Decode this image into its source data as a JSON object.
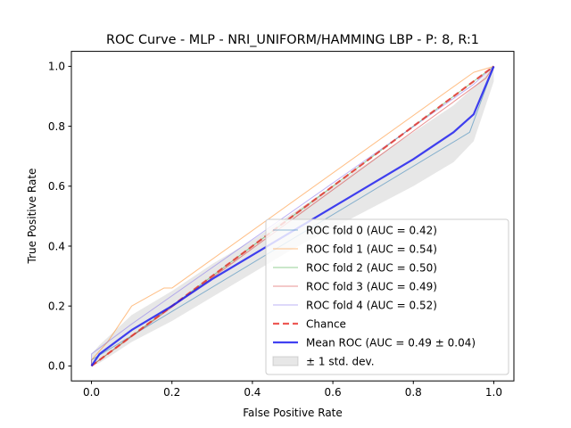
{
  "chart_data": {
    "type": "line",
    "title": "ROC Curve - MLP - NRI_UNIFORM/HAMMING LBP - P: 8, R:1",
    "xlabel": "False Positive Rate",
    "ylabel": "True Positive Rate",
    "xlim": [
      -0.05,
      1.05
    ],
    "ylim": [
      -0.05,
      1.05
    ],
    "xticks": [
      0.0,
      0.2,
      0.4,
      0.6,
      0.8,
      1.0
    ],
    "yticks": [
      0.0,
      0.2,
      0.4,
      0.6,
      0.8,
      1.0
    ],
    "tick_labels": [
      "0.0",
      "0.2",
      "0.4",
      "0.6",
      "0.8",
      "1.0"
    ],
    "grid": false,
    "legend_position": "lower right",
    "series": [
      {
        "name": "ROC fold 0 (AUC = 0.42)",
        "color": "#1f77b4",
        "opacity": 0.5,
        "width": 1,
        "dash": "",
        "x": [
          0.0,
          0.0,
          0.94,
          1.0
        ],
        "y": [
          0.0,
          0.02,
          0.78,
          1.0
        ]
      },
      {
        "name": "ROC fold 1 (AUC = 0.54)",
        "color": "#ff7f0e",
        "opacity": 0.5,
        "width": 1,
        "dash": "",
        "x": [
          0.0,
          0.0,
          0.04,
          0.1,
          0.18,
          0.2,
          0.95,
          1.0
        ],
        "y": [
          0.0,
          0.02,
          0.08,
          0.2,
          0.26,
          0.26,
          0.98,
          1.0
        ]
      },
      {
        "name": "ROC fold 2 (AUC = 0.50)",
        "color": "#2ca02c",
        "opacity": 0.5,
        "width": 1,
        "dash": "",
        "x": [
          0.0,
          1.0
        ],
        "y": [
          0.0,
          1.0
        ]
      },
      {
        "name": "ROC fold 3 (AUC = 0.49)",
        "color": "#d62728",
        "opacity": 0.5,
        "width": 1,
        "dash": "",
        "x": [
          0.0,
          0.02,
          0.98,
          1.0
        ],
        "y": [
          0.0,
          0.02,
          0.96,
          1.0
        ]
      },
      {
        "name": "ROC fold 4 (AUC = 0.52)",
        "color": "#7b68ee",
        "opacity": 0.5,
        "width": 1,
        "dash": "",
        "x": [
          0.0,
          0.0,
          0.1,
          0.95,
          1.0
        ],
        "y": [
          0.0,
          0.04,
          0.14,
          0.94,
          1.0
        ]
      },
      {
        "name": "Chance",
        "color": "#e8302a",
        "opacity": 0.8,
        "width": 2.2,
        "dash": "7,4",
        "x": [
          0.0,
          1.0
        ],
        "y": [
          0.0,
          1.0
        ]
      },
      {
        "name": "Mean ROC (AUC = 0.49 ± 0.04)",
        "color": "#2020ee",
        "opacity": 0.85,
        "width": 2.2,
        "dash": "",
        "x": [
          0.0,
          0.02,
          0.1,
          0.2,
          0.3,
          0.4,
          0.5,
          0.6,
          0.7,
          0.8,
          0.9,
          0.95,
          1.0
        ],
        "y": [
          0.0,
          0.04,
          0.12,
          0.2,
          0.29,
          0.37,
          0.45,
          0.53,
          0.61,
          0.69,
          0.78,
          0.84,
          1.0
        ]
      }
    ],
    "band": {
      "name": "± 1 std. dev.",
      "color": "#b0b0b0",
      "opacity": 0.3,
      "x": [
        0.0,
        0.02,
        0.1,
        0.2,
        0.3,
        0.4,
        0.5,
        0.6,
        0.7,
        0.8,
        0.9,
        0.95,
        1.0
      ],
      "upper": [
        0.04,
        0.07,
        0.17,
        0.25,
        0.34,
        0.42,
        0.51,
        0.6,
        0.69,
        0.78,
        0.87,
        0.93,
        1.0
      ],
      "lower": [
        0.0,
        0.01,
        0.08,
        0.15,
        0.23,
        0.31,
        0.39,
        0.46,
        0.53,
        0.6,
        0.68,
        0.75,
        0.95
      ]
    }
  }
}
